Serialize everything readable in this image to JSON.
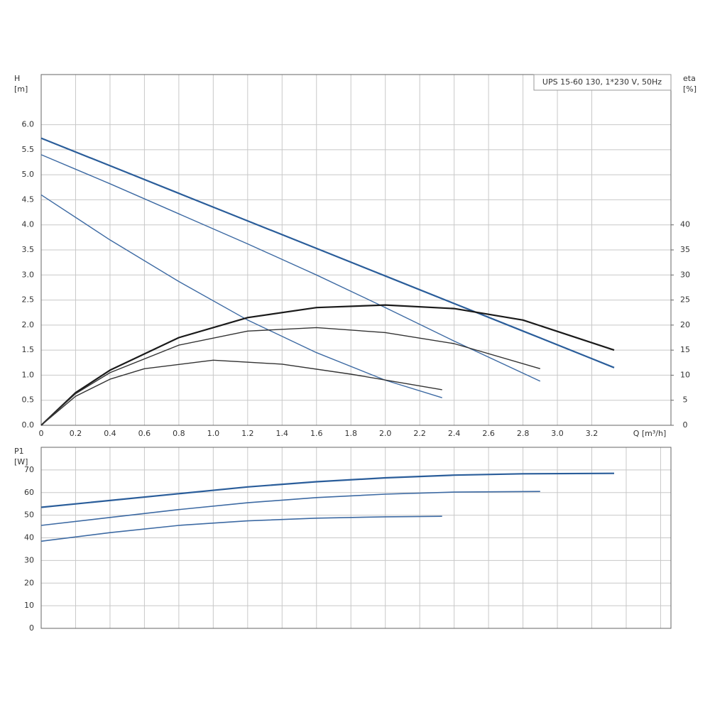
{
  "chart_data": [
    {
      "type": "line",
      "title": "UPS 15-60 130, 1*230 V, 50Hz",
      "y_label": "H",
      "y_unit": "[m]",
      "y2_label": "eta",
      "y2_unit": "[%]",
      "x_label": "Q [m³/h]",
      "xlim": [
        0,
        3.66
      ],
      "ylim": [
        0,
        7
      ],
      "y2lim": [
        0,
        70
      ],
      "xticks": [
        0,
        0.2,
        0.4,
        0.6,
        0.8,
        {
          "value": 1,
          "label": "1.0"
        },
        1.2,
        1.4,
        1.6,
        1.8,
        {
          "value": 2,
          "label": "2.0"
        },
        2.2,
        2.4,
        2.6,
        2.8,
        {
          "value": 3,
          "label": "3.0"
        },
        3.2
      ],
      "yticks": [
        {
          "value": 0,
          "label": "0.0"
        },
        0.5,
        {
          "value": 1,
          "label": "1.0"
        },
        1.5,
        {
          "value": 2,
          "label": "2.0"
        },
        2.5,
        {
          "value": 3,
          "label": "3.0"
        },
        3.5,
        {
          "value": 4,
          "label": "4.0"
        },
        4.5,
        {
          "value": 5,
          "label": "5.0"
        },
        5.5,
        {
          "value": 6,
          "label": "6.0"
        }
      ],
      "y2ticks": [
        0,
        5,
        10,
        15,
        20,
        25,
        30,
        35,
        40
      ],
      "show_xtick_labels": true,
      "grid": true,
      "series": [
        {
          "color": "#2a5d9a",
          "width": 2.2,
          "x": [
            0,
            0.4,
            0.8,
            1.2,
            1.6,
            2.0,
            2.4,
            2.8,
            3.2,
            3.33
          ],
          "values": [
            5.73,
            5.18,
            4.63,
            4.08,
            3.53,
            2.98,
            2.43,
            1.88,
            1.33,
            1.15
          ]
        },
        {
          "color": "#3d6aa3",
          "width": 1.4,
          "x": [
            0,
            0.4,
            0.8,
            1.2,
            1.6,
            2.0,
            2.4,
            2.9
          ],
          "values": [
            5.4,
            4.82,
            4.22,
            3.62,
            3.0,
            2.35,
            1.68,
            0.88
          ]
        },
        {
          "color": "#3d6aa3",
          "width": 1.4,
          "x": [
            0,
            0.4,
            0.8,
            1.2,
            1.6,
            2.0,
            2.33
          ],
          "values": [
            4.6,
            3.7,
            2.87,
            2.1,
            1.45,
            0.9,
            0.55
          ]
        },
        {
          "color": "#1a1a1a",
          "width": 2.2,
          "axis": "y2",
          "x": [
            0,
            0.2,
            0.4,
            0.8,
            1.2,
            1.6,
            2.0,
            2.4,
            2.8,
            3.33
          ],
          "values": [
            0,
            6.5,
            11,
            17.5,
            21.5,
            23.5,
            24,
            23.3,
            21,
            15
          ]
        },
        {
          "color": "#333333",
          "width": 1.4,
          "axis": "y2",
          "x": [
            0,
            0.2,
            0.4,
            0.8,
            1.2,
            1.6,
            2.0,
            2.4,
            2.9
          ],
          "values": [
            0,
            6.3,
            10.5,
            16,
            18.8,
            19.5,
            18.5,
            16.3,
            11.3
          ]
        },
        {
          "color": "#333333",
          "width": 1.4,
          "axis": "y2",
          "x": [
            0,
            0.2,
            0.4,
            0.6,
            1.0,
            1.4,
            1.8,
            2.33
          ],
          "values": [
            0,
            5.8,
            9.2,
            11.3,
            13,
            12.2,
            10.2,
            7.1
          ]
        }
      ]
    },
    {
      "type": "line",
      "y_label": "P1",
      "y_unit": "[W]",
      "xlim": [
        0,
        3.66
      ],
      "ylim": [
        0,
        80
      ],
      "xticks": [
        0,
        0.2,
        0.4,
        0.6,
        0.8,
        1,
        1.2,
        1.4,
        1.6,
        1.8,
        2,
        2.2,
        2.4,
        2.6,
        2.8,
        3,
        3.2,
        3.4,
        3.6
      ],
      "yticks": [
        0,
        10,
        20,
        30,
        40,
        50,
        60,
        70
      ],
      "show_xtick_labels": false,
      "grid": true,
      "series": [
        {
          "color": "#2a5d9a",
          "width": 2.2,
          "x": [
            0,
            0.4,
            0.8,
            1.2,
            1.6,
            2.0,
            2.4,
            2.8,
            3.33
          ],
          "values": [
            53.5,
            56.5,
            59.5,
            62.5,
            64.8,
            66.5,
            67.7,
            68.3,
            68.5
          ]
        },
        {
          "color": "#3d6aa3",
          "width": 1.6,
          "x": [
            0,
            0.4,
            0.8,
            1.2,
            1.6,
            2.0,
            2.4,
            2.9
          ],
          "values": [
            45.5,
            49,
            52.5,
            55.5,
            57.8,
            59.3,
            60.2,
            60.5
          ]
        },
        {
          "color": "#3d6aa3",
          "width": 1.6,
          "x": [
            0,
            0.4,
            0.8,
            1.2,
            1.6,
            2.0,
            2.33
          ],
          "values": [
            38.5,
            42.3,
            45.5,
            47.5,
            48.7,
            49.3,
            49.5
          ]
        }
      ]
    }
  ]
}
